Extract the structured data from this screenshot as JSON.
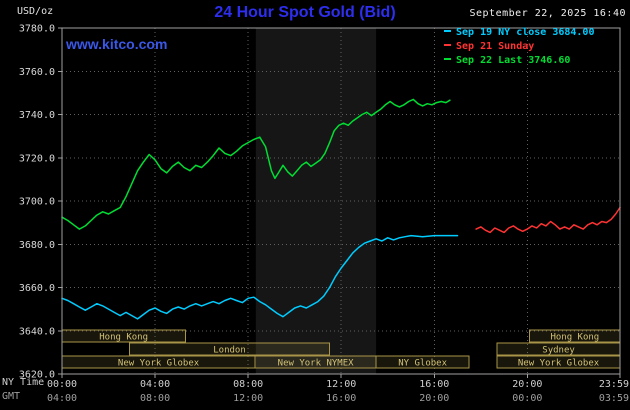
{
  "header": {
    "units_label": "USD/oz",
    "title": "24 Hour Spot Gold (Bid)",
    "datetime": "September 22, 2025 16:40",
    "watermark": "www.kitco.com"
  },
  "legend": {
    "items": [
      {
        "label": "Sep 19 NY close 3684.00",
        "color": "#00ccff"
      },
      {
        "label": "Sep 21 Sunday",
        "color": "#ff3333"
      },
      {
        "label": "Sep 22 Last 3746.60",
        "color": "#00dd33"
      }
    ]
  },
  "colors": {
    "background": "#000000",
    "title_blue": "#2e2eee",
    "watermark_blue": "#3a57e8",
    "grid": "#606060",
    "border": "#a0a0a0",
    "session_border": "#a89548",
    "session_text": "#d2c276",
    "nymex_band": "#161616"
  },
  "chart_data": {
    "type": "line",
    "title": "24 Hour Spot Gold (Bid)",
    "y_axis": {
      "label": "USD/oz",
      "min": 3620,
      "max": 3780,
      "step": 20,
      "tick_labels": [
        "3780.0",
        "3760.0",
        "3740.0",
        "3720.0",
        "3700.0",
        "3680.0",
        "3660.0",
        "3640.0",
        "3620.0"
      ]
    },
    "x_axis": {
      "ny_label": "NY Time",
      "gmt_label": "GMT",
      "range_hours": [
        0,
        23.983
      ],
      "tick_hours": [
        0,
        4,
        8,
        12,
        16,
        20,
        23.983
      ],
      "ny_tick_labels": [
        "00:00",
        "04:00",
        "08:00",
        "12:00",
        "16:00",
        "20:00",
        "23:59"
      ],
      "gmt_tick_labels": [
        "04:00",
        "08:00",
        "12:00",
        "16:00",
        "20:00",
        "00:00",
        "03:59"
      ]
    },
    "nymex_band_hours": [
      8.33,
      13.5
    ],
    "series": [
      {
        "name": "Sep 19 NY close",
        "close_value": 3684.0,
        "color": "#00ccff",
        "points": [
          [
            0,
            3655
          ],
          [
            0.25,
            3654
          ],
          [
            0.5,
            3652.5
          ],
          [
            0.75,
            3651
          ],
          [
            1,
            3649.5
          ],
          [
            1.25,
            3651
          ],
          [
            1.5,
            3652.5
          ],
          [
            1.75,
            3651.5
          ],
          [
            2,
            3650
          ],
          [
            2.25,
            3648.5
          ],
          [
            2.5,
            3647
          ],
          [
            2.75,
            3648.5
          ],
          [
            3,
            3647
          ],
          [
            3.25,
            3645.5
          ],
          [
            3.5,
            3647.5
          ],
          [
            3.75,
            3649.5
          ],
          [
            4,
            3650.5
          ],
          [
            4.25,
            3649
          ],
          [
            4.5,
            3648
          ],
          [
            4.75,
            3650
          ],
          [
            5,
            3651
          ],
          [
            5.25,
            3650
          ],
          [
            5.5,
            3651.5
          ],
          [
            5.75,
            3652.5
          ],
          [
            6,
            3651.5
          ],
          [
            6.25,
            3652.5
          ],
          [
            6.5,
            3653.5
          ],
          [
            6.75,
            3652.5
          ],
          [
            7,
            3654
          ],
          [
            7.25,
            3655
          ],
          [
            7.5,
            3654
          ],
          [
            7.75,
            3653
          ],
          [
            8,
            3655
          ],
          [
            8.25,
            3655.5
          ],
          [
            8.5,
            3653.5
          ],
          [
            8.75,
            3652
          ],
          [
            9,
            3650
          ],
          [
            9.25,
            3648
          ],
          [
            9.5,
            3646.5
          ],
          [
            9.75,
            3648.5
          ],
          [
            10,
            3650.5
          ],
          [
            10.25,
            3651.5
          ],
          [
            10.5,
            3650.5
          ],
          [
            10.75,
            3652
          ],
          [
            11,
            3653.5
          ],
          [
            11.25,
            3656
          ],
          [
            11.5,
            3660
          ],
          [
            11.75,
            3665
          ],
          [
            12,
            3669
          ],
          [
            12.25,
            3672.5
          ],
          [
            12.5,
            3676
          ],
          [
            12.75,
            3678.5
          ],
          [
            13,
            3680.5
          ],
          [
            13.25,
            3681.5
          ],
          [
            13.5,
            3682.5
          ],
          [
            13.75,
            3681.5
          ],
          [
            14,
            3683
          ],
          [
            14.25,
            3682
          ],
          [
            14.5,
            3683
          ],
          [
            14.75,
            3683.5
          ],
          [
            15,
            3684
          ],
          [
            15.5,
            3683.5
          ],
          [
            16,
            3684
          ],
          [
            16.5,
            3684
          ],
          [
            17,
            3684
          ]
        ]
      },
      {
        "name": "Sep 21 Sunday",
        "color": "#ff3333",
        "points": [
          [
            17.8,
            3687
          ],
          [
            18,
            3688
          ],
          [
            18.2,
            3686.5
          ],
          [
            18.4,
            3685.5
          ],
          [
            18.6,
            3687.5
          ],
          [
            18.8,
            3686.5
          ],
          [
            19,
            3685.5
          ],
          [
            19.2,
            3687.5
          ],
          [
            19.4,
            3688.5
          ],
          [
            19.6,
            3687
          ],
          [
            19.8,
            3686
          ],
          [
            20,
            3687
          ],
          [
            20.2,
            3688.5
          ],
          [
            20.4,
            3687.5
          ],
          [
            20.6,
            3689.5
          ],
          [
            20.8,
            3688.5
          ],
          [
            21,
            3690.5
          ],
          [
            21.2,
            3689
          ],
          [
            21.4,
            3687
          ],
          [
            21.6,
            3688
          ],
          [
            21.8,
            3687
          ],
          [
            22,
            3689
          ],
          [
            22.2,
            3688
          ],
          [
            22.4,
            3687
          ],
          [
            22.6,
            3689
          ],
          [
            22.8,
            3690
          ],
          [
            23,
            3689
          ],
          [
            23.2,
            3690.5
          ],
          [
            23.4,
            3690
          ],
          [
            23.6,
            3691.5
          ],
          [
            23.8,
            3694
          ],
          [
            23.983,
            3697
          ]
        ]
      },
      {
        "name": "Sep 22 Last",
        "last_value": 3746.6,
        "color": "#00dd33",
        "points": [
          [
            0,
            3692.5
          ],
          [
            0.25,
            3691
          ],
          [
            0.5,
            3689
          ],
          [
            0.75,
            3687
          ],
          [
            1,
            3688.5
          ],
          [
            1.25,
            3691
          ],
          [
            1.5,
            3693.5
          ],
          [
            1.75,
            3695
          ],
          [
            2,
            3694
          ],
          [
            2.25,
            3695.5
          ],
          [
            2.5,
            3697
          ],
          [
            2.75,
            3702
          ],
          [
            3,
            3708
          ],
          [
            3.25,
            3714
          ],
          [
            3.5,
            3718
          ],
          [
            3.75,
            3721.5
          ],
          [
            4,
            3719
          ],
          [
            4.25,
            3715
          ],
          [
            4.5,
            3713
          ],
          [
            4.75,
            3716
          ],
          [
            5,
            3718
          ],
          [
            5.25,
            3715.5
          ],
          [
            5.5,
            3714
          ],
          [
            5.75,
            3716.5
          ],
          [
            6,
            3715.5
          ],
          [
            6.25,
            3718
          ],
          [
            6.5,
            3721
          ],
          [
            6.75,
            3724.5
          ],
          [
            7,
            3722
          ],
          [
            7.25,
            3721
          ],
          [
            7.5,
            3723
          ],
          [
            7.75,
            3725.5
          ],
          [
            8,
            3727
          ],
          [
            8.25,
            3728.5
          ],
          [
            8.5,
            3729.5
          ],
          [
            8.75,
            3725
          ],
          [
            9,
            3714
          ],
          [
            9.15,
            3710.5
          ],
          [
            9.3,
            3713
          ],
          [
            9.5,
            3716.5
          ],
          [
            9.7,
            3713.5
          ],
          [
            9.9,
            3711.5
          ],
          [
            10.1,
            3714
          ],
          [
            10.3,
            3716.5
          ],
          [
            10.5,
            3718
          ],
          [
            10.7,
            3716
          ],
          [
            10.9,
            3717.5
          ],
          [
            11.1,
            3719
          ],
          [
            11.3,
            3722
          ],
          [
            11.5,
            3727
          ],
          [
            11.7,
            3732.5
          ],
          [
            11.9,
            3735
          ],
          [
            12.1,
            3736
          ],
          [
            12.3,
            3735
          ],
          [
            12.5,
            3737
          ],
          [
            12.7,
            3738.5
          ],
          [
            12.9,
            3740
          ],
          [
            13.1,
            3741
          ],
          [
            13.3,
            3739.5
          ],
          [
            13.5,
            3741
          ],
          [
            13.7,
            3742.5
          ],
          [
            13.9,
            3744.5
          ],
          [
            14.1,
            3746
          ],
          [
            14.3,
            3744.5
          ],
          [
            14.5,
            3743.5
          ],
          [
            14.7,
            3744.5
          ],
          [
            14.9,
            3746
          ],
          [
            15.1,
            3747
          ],
          [
            15.3,
            3745
          ],
          [
            15.5,
            3744
          ],
          [
            15.7,
            3745
          ],
          [
            15.9,
            3744.5
          ],
          [
            16.1,
            3745.5
          ],
          [
            16.3,
            3746
          ],
          [
            16.5,
            3745.5
          ],
          [
            16.67,
            3746.6
          ]
        ]
      }
    ],
    "sessions": [
      {
        "row": 0,
        "label": "Hong Kong",
        "start": 0,
        "end": 5.3
      },
      {
        "row": 0,
        "label": "Hong Kong",
        "start": 20.1,
        "end": 23.983
      },
      {
        "row": 1,
        "label": "London",
        "start": 2.9,
        "end": 11.5
      },
      {
        "row": 1,
        "label": "Sydney",
        "start": 18.7,
        "end": 23.983
      },
      {
        "row": 2,
        "label": "New York Globex",
        "start": 0,
        "end": 8.3
      },
      {
        "row": 2,
        "label": "New York NYMEX",
        "start": 8.3,
        "end": 13.5
      },
      {
        "row": 2,
        "label": "NY Globex",
        "start": 13.5,
        "end": 17.5
      },
      {
        "row": 2,
        "label": "New York Globex",
        "start": 18.7,
        "end": 23.983
      }
    ]
  }
}
